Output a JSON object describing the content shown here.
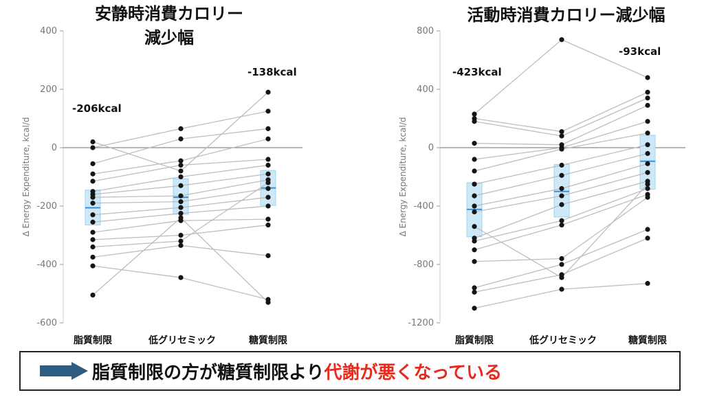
{
  "chart_data": [
    {
      "type": "scatter",
      "title": [
        "安静時消費カロリー",
        "減少幅"
      ],
      "ylabel": "Δ Energy Expenditure, kcal/d",
      "ylim": [
        -600,
        400
      ],
      "yticks": [
        400,
        200,
        0,
        -200,
        -400,
        -600
      ],
      "categories": [
        "脂質制限",
        "低グリセミック",
        "糖質制限"
      ],
      "box": [
        {
          "q1": -265,
          "median": -206,
          "q3": -145
        },
        {
          "q1": -228,
          "median": -170,
          "q3": -107
        },
        {
          "q1": -198,
          "median": -138,
          "q3": -78
        }
      ],
      "annotations": [
        "-206kcal",
        "",
        "-138kcal"
      ],
      "subjects": [
        [
          20,
          -80,
          190
        ],
        [
          0,
          65,
          125
        ],
        [
          -55,
          30,
          65
        ],
        [
          -90,
          -45,
          30
        ],
        [
          -115,
          -60,
          -40
        ],
        [
          -150,
          -100,
          -60
        ],
        [
          -160,
          -130,
          -90
        ],
        [
          -170,
          -165,
          -110
        ],
        [
          -190,
          -185,
          -140
        ],
        [
          -230,
          -205,
          -170
        ],
        [
          -255,
          -225,
          -200
        ],
        [
          -290,
          -250,
          -245
        ],
        [
          -315,
          -300,
          -265
        ],
        [
          -340,
          -320,
          -120
        ],
        [
          -375,
          -335,
          -370
        ],
        [
          -405,
          -445,
          -520
        ],
        [
          -505,
          -240,
          -530
        ]
      ]
    },
    {
      "type": "scatter",
      "title": [
        "活動時消費カロリー減少幅"
      ],
      "ylabel": "Δ Energy Expenditure, kcal/d",
      "ylim": [
        -1200,
        800
      ],
      "yticks": [
        800,
        400,
        0,
        -400,
        -800,
        -1200
      ],
      "categories": [
        "脂質制限",
        "低グリセミック",
        "糖質制限"
      ],
      "box": [
        {
          "q1": -610,
          "median": -423,
          "q3": -240
        },
        {
          "q1": -475,
          "median": -300,
          "q3": -115
        },
        {
          "q1": -285,
          "median": -93,
          "q3": 85
        }
      ],
      "annotations": [
        "-423kcal",
        "",
        "-93kcal"
      ],
      "subjects": [
        [
          230,
          740,
          480
        ],
        [
          200,
          110,
          380
        ],
        [
          180,
          80,
          340
        ],
        [
          30,
          20,
          290
        ],
        [
          -80,
          0,
          180
        ],
        [
          -160,
          -10,
          100
        ],
        [
          -250,
          -120,
          20
        ],
        [
          -330,
          -190,
          -40
        ],
        [
          -400,
          -280,
          -110
        ],
        [
          -440,
          -330,
          -170
        ],
        [
          -620,
          -390,
          -230
        ],
        [
          -640,
          -500,
          -280
        ],
        [
          -700,
          -530,
          -320
        ],
        [
          -780,
          -760,
          -340
        ],
        [
          -960,
          -800,
          -560
        ],
        [
          -990,
          -870,
          -620
        ],
        [
          -1100,
          -970,
          -930
        ],
        [
          -540,
          -890,
          -250
        ]
      ]
    }
  ],
  "banner": {
    "text": "脂質制限の方が糖質制限より",
    "highlight": "代謝が悪くなっている",
    "arrow_color": "#2f5d82",
    "highlight_color": "#e8291c"
  }
}
